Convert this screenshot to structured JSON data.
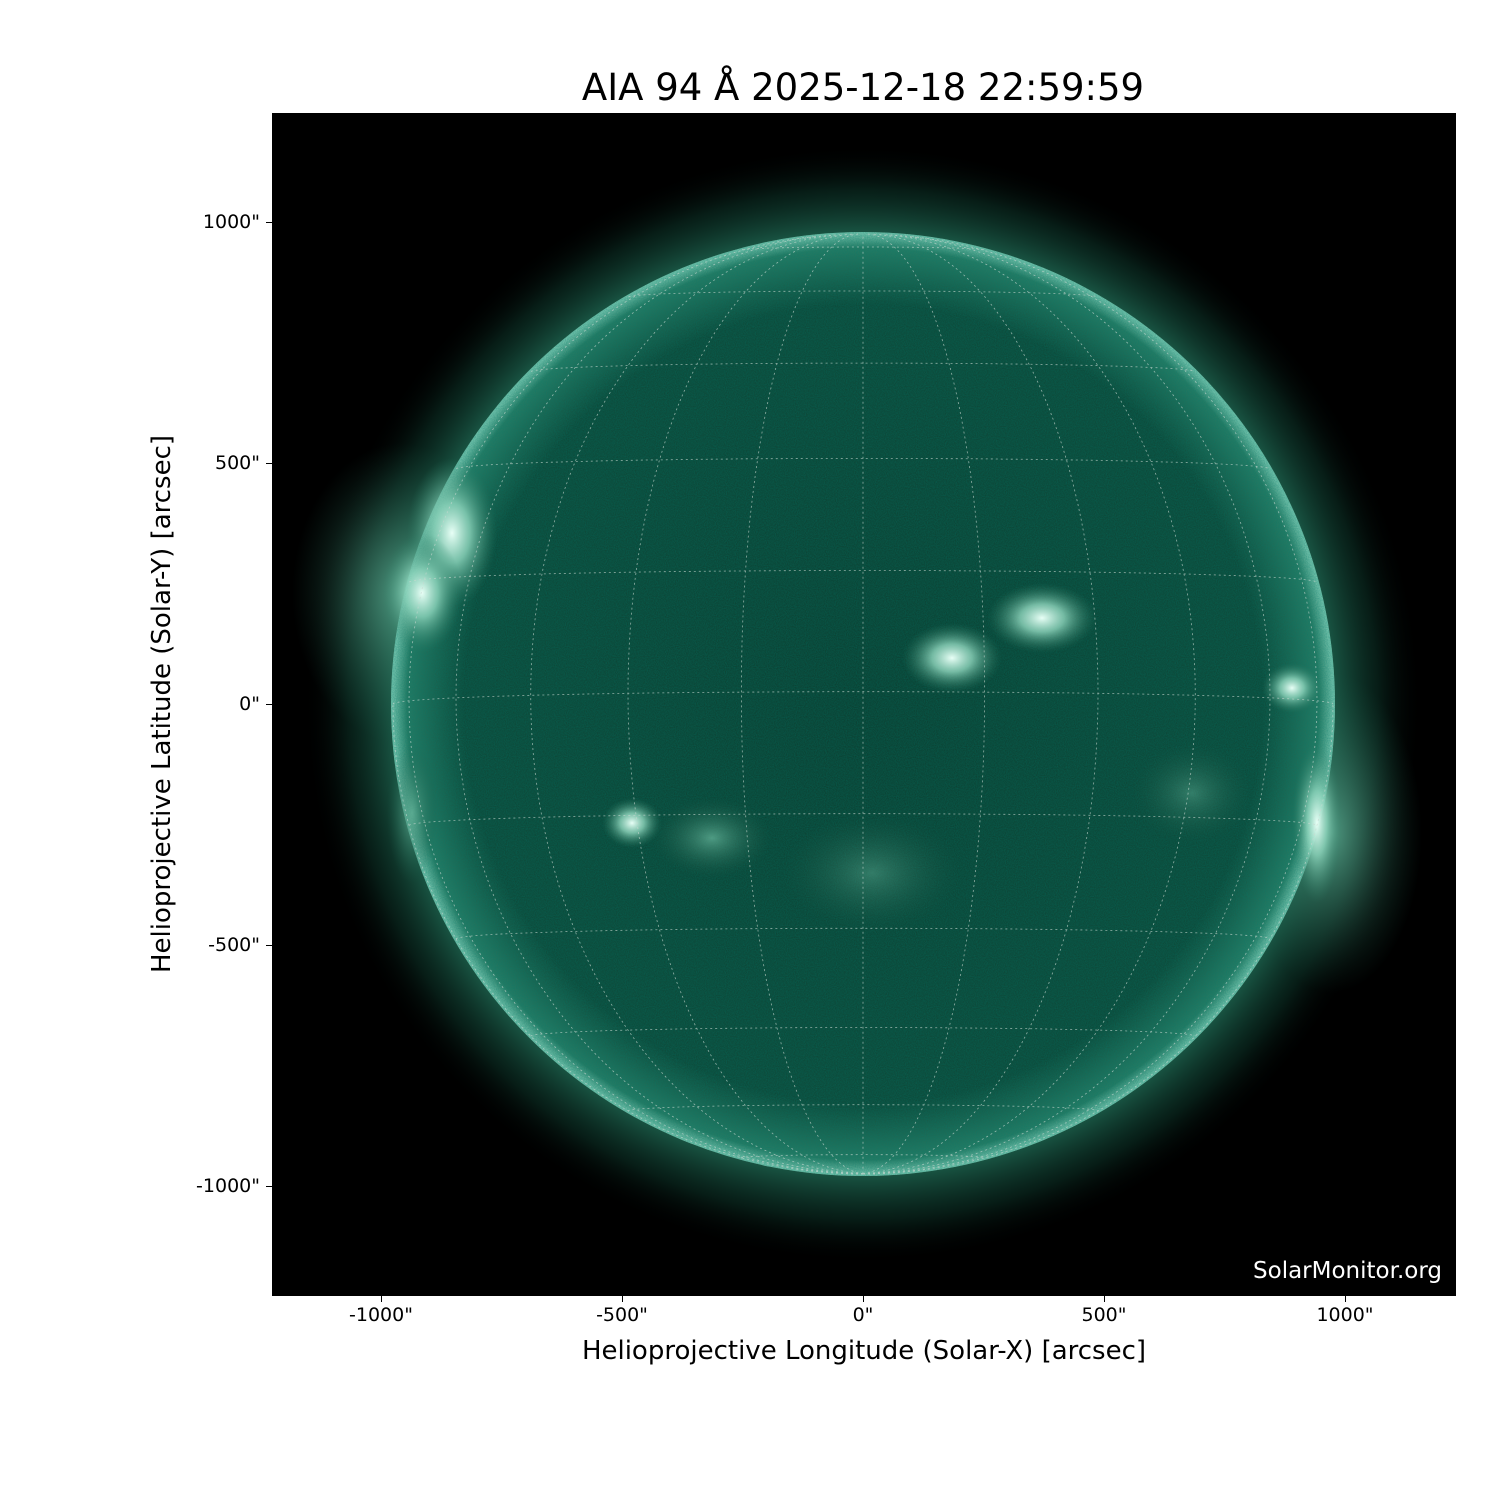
{
  "title": "AIA 94 Å 2025-12-18 22:59:59",
  "watermark": "SolarMonitor.org",
  "xaxis": {
    "label": "Helioprojective Longitude (Solar-X) [arcsec]",
    "ticks": [
      "-1000\"",
      "-500\"",
      "0\"",
      "500\"",
      "1000\""
    ],
    "tick_values": [
      -1000,
      -500,
      0,
      500,
      1000
    ],
    "range": [
      -1230,
      1230
    ]
  },
  "yaxis": {
    "label": "Helioprojective Latitude (Solar-Y) [arcsec]",
    "ticks": [
      "1000\"",
      "500\"",
      "0\"",
      "-500\"",
      "-1000\""
    ],
    "tick_values": [
      1000,
      500,
      0,
      -500,
      -1000
    ],
    "range": [
      -1230,
      1230
    ]
  },
  "colors": {
    "disk": "#0d3d2e",
    "corona": "#2a7a62",
    "bright": "#d8f5ea",
    "background": "#000000",
    "grid": "#c8d8d0"
  },
  "grid": {
    "type": "heliographic",
    "spacing_deg": 15
  }
}
